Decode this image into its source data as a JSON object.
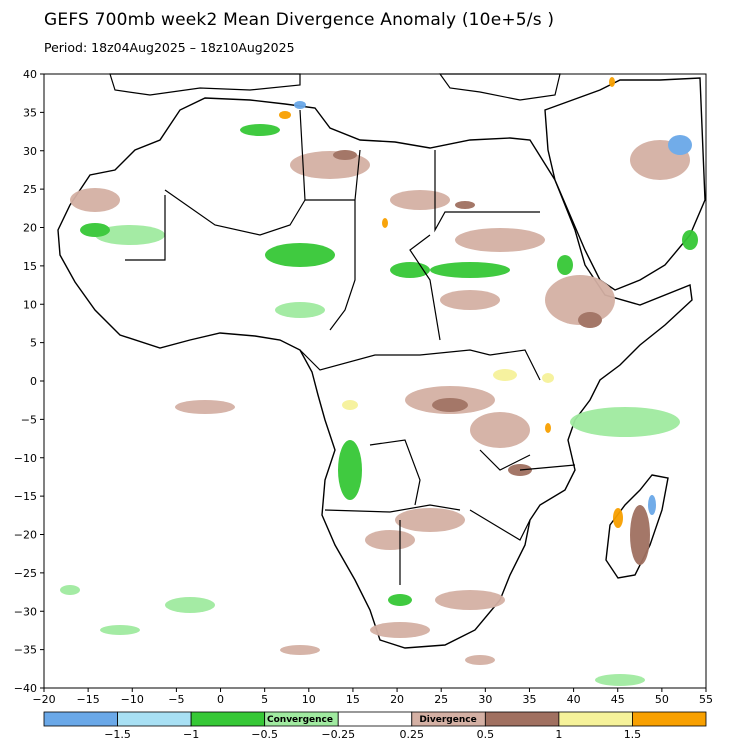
{
  "title": "GEFS 700mb week2 Mean Divergence Anomaly (10e+5/s )",
  "subtitle": "Period: 18z04Aug2025 – 18z10Aug2025",
  "map": {
    "lon_range": [
      -20,
      55
    ],
    "lat_range": [
      -40,
      40
    ],
    "x_ticks": [
      "−20",
      "−15",
      "−10",
      "−5",
      "0",
      "5",
      "10",
      "15",
      "20",
      "25",
      "30",
      "35",
      "40",
      "45",
      "50",
      "55"
    ],
    "y_ticks": [
      "40",
      "35",
      "30",
      "25",
      "20",
      "15",
      "10",
      "5",
      "0",
      "−5",
      "−10",
      "−15",
      "−20",
      "−25",
      "−30",
      "−35",
      "−40"
    ],
    "colors": {
      "strong_convergence": "#6aa8e8",
      "convergence_light": "#a8e0f4",
      "convergence_green": "#36c836",
      "weak_convergence": "#a0eaa0",
      "weak_divergence": "#d4b0a4",
      "divergence_brown": "#a07060",
      "divergence_yellow": "#f6f29a",
      "strong_divergence": "#f8a000",
      "coast": "#000000",
      "borders": "#909090"
    }
  },
  "colorbar": {
    "labels": [
      "−1.5",
      "−1",
      "−0.5",
      "−0.25",
      "0.25",
      "0.5",
      "1",
      "1.5"
    ],
    "center_left": "Convergence",
    "center_right": "Divergence",
    "swatches": [
      "#6aa8e8",
      "#a8e0f4",
      "#36c836",
      "#a0eaa0",
      "#ffffff",
      "#d4b0a4",
      "#a07060",
      "#f6f29a",
      "#f8a000"
    ]
  }
}
